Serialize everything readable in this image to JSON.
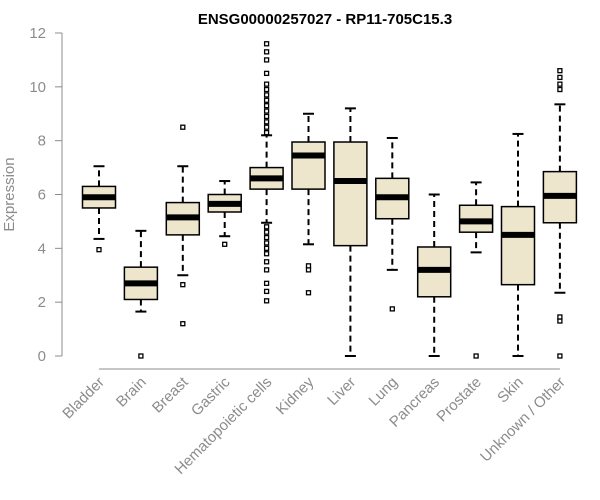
{
  "chart_data": {
    "type": "boxplot",
    "title": "ENSG00000257027 - RP11-705C15.3",
    "xlabel": "",
    "ylabel": "Expression",
    "ylim": [
      0,
      12
    ],
    "yticks": [
      0,
      2,
      4,
      6,
      8,
      10,
      12
    ],
    "categories": [
      "Bladder",
      "Brain",
      "Breast",
      "Gastric",
      "Hematopoietic cells",
      "Kidney",
      "Liver",
      "Lung",
      "Pancreas",
      "Prostate",
      "Skin",
      "Unknown / Other"
    ],
    "boxes": [
      {
        "q1": 5.5,
        "median": 5.9,
        "q3": 6.3,
        "whisker_low": 4.35,
        "whisker_high": 7.05,
        "outliers": [
          3.95
        ]
      },
      {
        "q1": 2.1,
        "median": 2.7,
        "q3": 3.3,
        "whisker_low": 1.65,
        "whisker_high": 4.65,
        "outliers": [
          0.0
        ]
      },
      {
        "q1": 4.5,
        "median": 5.15,
        "q3": 5.7,
        "whisker_low": 3.0,
        "whisker_high": 7.05,
        "outliers": [
          1.2,
          2.65,
          8.5
        ]
      },
      {
        "q1": 5.35,
        "median": 5.65,
        "q3": 6.0,
        "whisker_low": 4.45,
        "whisker_high": 6.5,
        "outliers": [
          4.15
        ]
      },
      {
        "q1": 6.2,
        "median": 6.6,
        "q3": 7.0,
        "whisker_low": 4.95,
        "whisker_high": 8.2,
        "outliers": [
          2.05,
          2.4,
          2.7,
          3.2,
          3.5,
          3.8,
          4.0,
          4.2,
          4.4,
          4.6,
          4.8,
          8.3,
          8.5,
          8.7,
          8.9,
          9.1,
          9.3,
          9.5,
          9.7,
          9.9,
          10.1,
          10.5,
          11.0,
          11.3,
          11.6
        ]
      },
      {
        "q1": 6.2,
        "median": 7.45,
        "q3": 7.95,
        "whisker_low": 4.15,
        "whisker_high": 9.0,
        "outliers": [
          2.35,
          3.2,
          3.35
        ]
      },
      {
        "q1": 4.1,
        "median": 6.5,
        "q3": 7.95,
        "whisker_low": 0.0,
        "whisker_high": 9.2,
        "outliers": []
      },
      {
        "q1": 5.1,
        "median": 5.9,
        "q3": 6.6,
        "whisker_low": 3.2,
        "whisker_high": 8.1,
        "outliers": [
          1.75
        ]
      },
      {
        "q1": 2.2,
        "median": 3.2,
        "q3": 4.05,
        "whisker_low": 0.0,
        "whisker_high": 6.0,
        "outliers": []
      },
      {
        "q1": 4.6,
        "median": 5.0,
        "q3": 5.6,
        "whisker_low": 3.85,
        "whisker_high": 6.45,
        "outliers": [
          0.0
        ]
      },
      {
        "q1": 2.65,
        "median": 4.5,
        "q3": 5.55,
        "whisker_low": 0.0,
        "whisker_high": 8.25,
        "outliers": []
      },
      {
        "q1": 4.95,
        "median": 5.95,
        "q3": 6.85,
        "whisker_low": 2.35,
        "whisker_high": 9.35,
        "outliers": [
          0.0,
          1.3,
          1.45,
          9.9,
          10.1,
          10.35,
          10.6
        ]
      }
    ]
  },
  "colors": {
    "box_fill": "#ede6cc",
    "box_stroke": "#000000",
    "axis": "#8c8c8c",
    "label_text": "#8c8c8c"
  }
}
